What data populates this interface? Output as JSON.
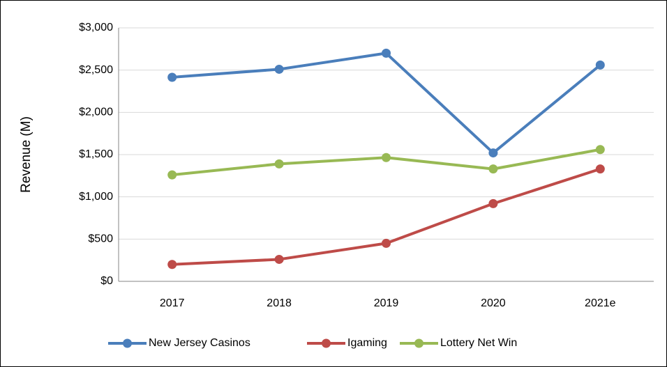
{
  "chart_data": {
    "type": "line",
    "y_label": "Revenue (M)",
    "categories": [
      "2017",
      "2018",
      "2019",
      "2020",
      "2021e"
    ],
    "series": [
      {
        "name": "New Jersey Casinos",
        "color": "#4a7ebb",
        "values": [
          2415,
          2510,
          2700,
          1520,
          2560
        ]
      },
      {
        "name": "Igaming",
        "color": "#be4b48",
        "values": [
          200,
          260,
          450,
          920,
          1330
        ]
      },
      {
        "name": "Lottery Net Win",
        "color": "#98b954",
        "values": [
          1260,
          1390,
          1465,
          1330,
          1560
        ]
      }
    ],
    "ylim": [
      0,
      3000
    ],
    "yticks": [
      {
        "value": 0,
        "label": "$0"
      },
      {
        "value": 500,
        "label": "$500"
      },
      {
        "value": 1000,
        "label": "$1,000"
      },
      {
        "value": 1500,
        "label": "$1,500"
      },
      {
        "value": 2000,
        "label": "$2,000"
      },
      {
        "value": 2500,
        "label": "$2,500"
      },
      {
        "value": 3000,
        "label": "$3,000"
      }
    ],
    "grid": true,
    "legend": "bottom"
  }
}
